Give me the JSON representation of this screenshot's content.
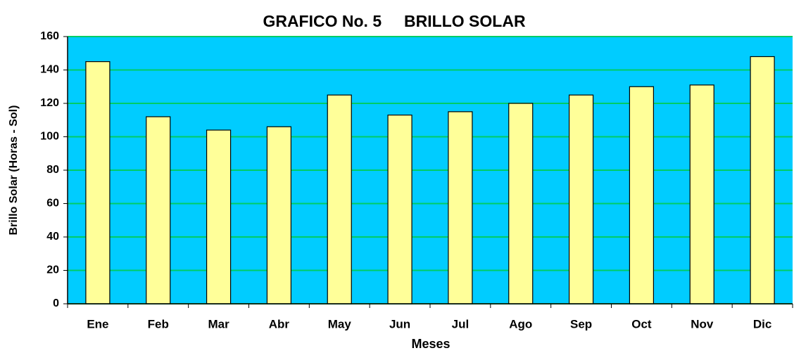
{
  "chart_data": {
    "type": "bar",
    "title": "GRAFICO No. 5     BRILLO SOLAR",
    "x_label": "Meses",
    "y_label": "Brillo Solar (Horas - Sol)",
    "categories": [
      "Ene",
      "Feb",
      "Mar",
      "Abr",
      "May",
      "Jun",
      "Jul",
      "Ago",
      "Sep",
      "Oct",
      "Nov",
      "Dic"
    ],
    "values": [
      145,
      112,
      104,
      106,
      125,
      113,
      115,
      120,
      125,
      130,
      131,
      148
    ],
    "color": "#ffff99",
    "background": "#00ccff",
    "grid_color": "#00cc66",
    "ylim": [
      0,
      160
    ],
    "yticks": [
      0,
      20,
      40,
      60,
      80,
      100,
      120,
      140,
      160
    ],
    "grid": true
  }
}
